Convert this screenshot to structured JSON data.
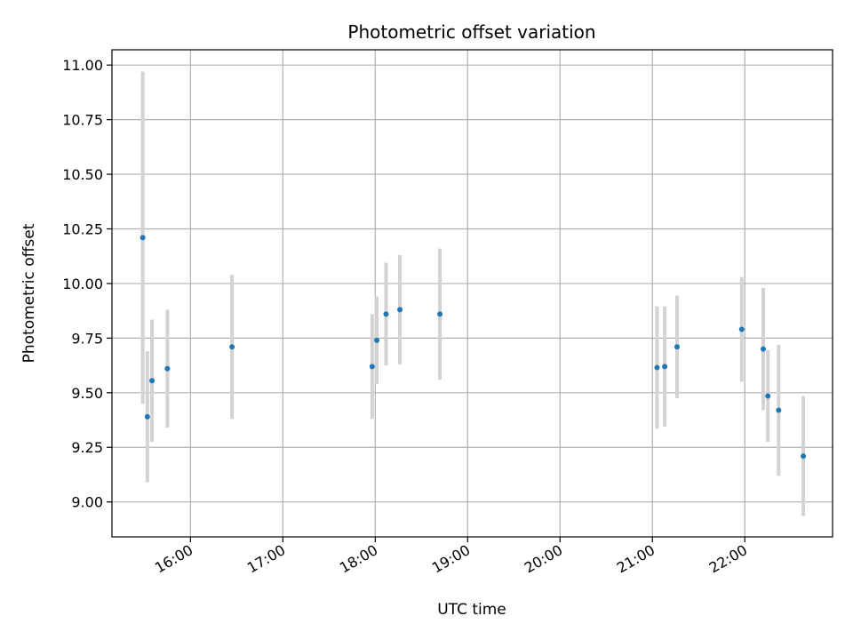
{
  "chart_data": {
    "type": "scatter",
    "title": "Photometric offset variation",
    "xlabel": "UTC time",
    "ylabel": "Photometric offset",
    "xlim": [
      "15:09",
      "22:57"
    ],
    "ylim": [
      8.84,
      11.07
    ],
    "xticks": [
      "16:00",
      "17:00",
      "18:00",
      "19:00",
      "20:00",
      "21:00",
      "22:00"
    ],
    "yticks": [
      "9.00",
      "9.25",
      "9.50",
      "9.75",
      "10.00",
      "10.25",
      "10.50",
      "10.75",
      "11.00"
    ],
    "grid": true,
    "colors": {
      "point": "#1f77b4",
      "errorbar": "#d3d3d3",
      "grid": "#b0b0b0"
    },
    "points": [
      {
        "x": "15:29",
        "y": 10.21,
        "err": 0.76
      },
      {
        "x": "15:32",
        "y": 9.39,
        "err": 0.3
      },
      {
        "x": "15:35",
        "y": 9.555,
        "err": 0.28
      },
      {
        "x": "15:45",
        "y": 9.61,
        "err": 0.27
      },
      {
        "x": "16:27",
        "y": 9.71,
        "err": 0.33
      },
      {
        "x": "17:58",
        "y": 9.62,
        "err": 0.24
      },
      {
        "x": "18:01",
        "y": 9.74,
        "err": 0.2
      },
      {
        "x": "18:07",
        "y": 9.86,
        "err": 0.235
      },
      {
        "x": "18:16",
        "y": 9.88,
        "err": 0.25
      },
      {
        "x": "18:42",
        "y": 9.86,
        "err": 0.3
      },
      {
        "x": "21:03",
        "y": 9.615,
        "err": 0.28
      },
      {
        "x": "21:08",
        "y": 9.62,
        "err": 0.275
      },
      {
        "x": "21:16",
        "y": 9.71,
        "err": 0.235
      },
      {
        "x": "21:58",
        "y": 9.79,
        "err": 0.24
      },
      {
        "x": "22:12",
        "y": 9.7,
        "err": 0.28
      },
      {
        "x": "22:15",
        "y": 9.485,
        "err": 0.21
      },
      {
        "x": "22:22",
        "y": 9.42,
        "err": 0.3
      },
      {
        "x": "22:38",
        "y": 9.21,
        "err": 0.275
      }
    ]
  }
}
